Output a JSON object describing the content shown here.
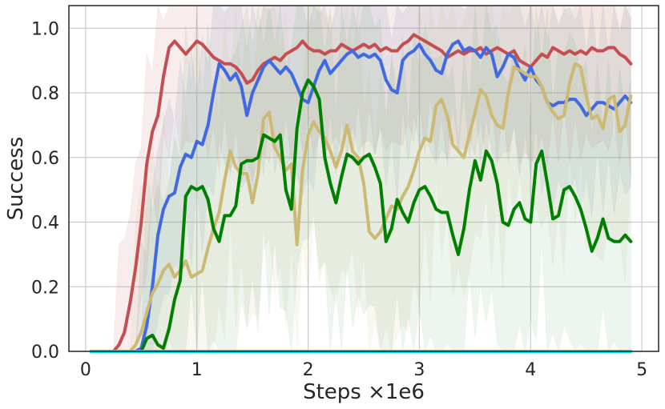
{
  "chart_data": {
    "type": "line",
    "title": "",
    "xlabel": "Steps ×1e6",
    "ylabel": "Success",
    "xlim": [
      -0.15,
      5.15
    ],
    "ylim": [
      0.0,
      1.07
    ],
    "xticks": [
      0,
      1,
      2,
      3,
      4,
      5
    ],
    "xtick_labels": [
      "0",
      "1",
      "2",
      "3",
      "4",
      "5"
    ],
    "yticks": [
      0.0,
      0.2,
      0.4,
      0.6,
      0.8,
      1.0
    ],
    "ytick_labels": [
      "0.0",
      "0.2",
      "0.4",
      "0.6",
      "0.8",
      "1.0"
    ],
    "grid": true,
    "legend": "none",
    "x": [
      0.05,
      0.1,
      0.15,
      0.2,
      0.25,
      0.3,
      0.35,
      0.4,
      0.45,
      0.5,
      0.55,
      0.6,
      0.65,
      0.7,
      0.75,
      0.8,
      0.85,
      0.9,
      0.95,
      1.0,
      1.05,
      1.1,
      1.15,
      1.2,
      1.25,
      1.3,
      1.35,
      1.4,
      1.45,
      1.5,
      1.55,
      1.6,
      1.65,
      1.7,
      1.75,
      1.8,
      1.85,
      1.9,
      1.95,
      2.0,
      2.05,
      2.1,
      2.15,
      2.2,
      2.25,
      2.3,
      2.35,
      2.4,
      2.45,
      2.5,
      2.55,
      2.6,
      2.65,
      2.7,
      2.75,
      2.8,
      2.85,
      2.9,
      2.95,
      3.0,
      3.05,
      3.1,
      3.15,
      3.2,
      3.25,
      3.3,
      3.35,
      3.4,
      3.45,
      3.5,
      3.55,
      3.6,
      3.65,
      3.7,
      3.75,
      3.8,
      3.85,
      3.9,
      3.95,
      4.0,
      4.05,
      4.1,
      4.15,
      4.2,
      4.25,
      4.3,
      4.35,
      4.4,
      4.45,
      4.5,
      4.55,
      4.6,
      4.65,
      4.7,
      4.75,
      4.8,
      4.85,
      4.9
    ],
    "series": [
      {
        "color": "#c44e52",
        "band_color": "#c44e52",
        "values": [
          0.0,
          0.0,
          0.0,
          0.0,
          0.0,
          0.02,
          0.06,
          0.15,
          0.26,
          0.4,
          0.58,
          0.68,
          0.73,
          0.85,
          0.94,
          0.96,
          0.94,
          0.92,
          0.94,
          0.96,
          0.95,
          0.93,
          0.91,
          0.9,
          0.89,
          0.89,
          0.88,
          0.86,
          0.83,
          0.84,
          0.87,
          0.89,
          0.9,
          0.91,
          0.9,
          0.92,
          0.93,
          0.94,
          0.96,
          0.94,
          0.93,
          0.93,
          0.92,
          0.93,
          0.93,
          0.95,
          0.94,
          0.93,
          0.94,
          0.95,
          0.94,
          0.95,
          0.93,
          0.94,
          0.93,
          0.93,
          0.95,
          0.96,
          0.98,
          0.97,
          0.96,
          0.95,
          0.94,
          0.93,
          0.91,
          0.92,
          0.93,
          0.92,
          0.93,
          0.93,
          0.94,
          0.92,
          0.93,
          0.94,
          0.93,
          0.92,
          0.93,
          0.9,
          0.89,
          0.88,
          0.9,
          0.92,
          0.91,
          0.94,
          0.93,
          0.92,
          0.93,
          0.92,
          0.93,
          0.92,
          0.94,
          0.93,
          0.93,
          0.94,
          0.94,
          0.92,
          0.91,
          0.89
        ],
        "band": [
          0.15,
          0.2
        ]
      },
      {
        "color": "#4169e1",
        "band_color": "#4c72b0",
        "values": [
          0.0,
          0.0,
          0.0,
          0.0,
          0.0,
          0.0,
          0.0,
          0.0,
          0.0,
          0.01,
          0.08,
          0.2,
          0.36,
          0.44,
          0.48,
          0.49,
          0.57,
          0.61,
          0.6,
          0.65,
          0.64,
          0.7,
          0.8,
          0.89,
          0.87,
          0.84,
          0.86,
          0.82,
          0.73,
          0.8,
          0.84,
          0.88,
          0.9,
          0.88,
          0.86,
          0.88,
          0.86,
          0.82,
          0.78,
          0.77,
          0.82,
          0.87,
          0.9,
          0.86,
          0.88,
          0.9,
          0.92,
          0.93,
          0.91,
          0.92,
          0.91,
          0.92,
          0.9,
          0.84,
          0.81,
          0.8,
          0.9,
          0.92,
          0.93,
          0.95,
          0.92,
          0.9,
          0.87,
          0.86,
          0.92,
          0.95,
          0.96,
          0.93,
          0.94,
          0.93,
          0.91,
          0.94,
          0.92,
          0.85,
          0.88,
          0.92,
          0.91,
          0.87,
          0.84,
          0.88,
          0.84,
          0.82,
          0.77,
          0.76,
          0.77,
          0.77,
          0.78,
          0.78,
          0.76,
          0.73,
          0.75,
          0.77,
          0.77,
          0.76,
          0.75,
          0.77,
          0.79,
          0.77
        ],
        "band": [
          0.12,
          0.22
        ]
      },
      {
        "color": "#ccb974",
        "band_color": "#ccb974",
        "values": [
          0.0,
          0.0,
          0.0,
          0.0,
          0.0,
          0.0,
          0.0,
          0.0,
          0.02,
          0.06,
          0.12,
          0.18,
          0.21,
          0.25,
          0.27,
          0.23,
          0.25,
          0.28,
          0.23,
          0.24,
          0.25,
          0.32,
          0.38,
          0.43,
          0.53,
          0.62,
          0.57,
          0.55,
          0.55,
          0.46,
          0.55,
          0.72,
          0.74,
          0.63,
          0.6,
          0.56,
          0.58,
          0.33,
          0.56,
          0.67,
          0.71,
          0.68,
          0.66,
          0.62,
          0.57,
          0.62,
          0.7,
          0.62,
          0.6,
          0.52,
          0.37,
          0.35,
          0.37,
          0.41,
          0.45,
          0.44,
          0.48,
          0.51,
          0.56,
          0.62,
          0.66,
          0.65,
          0.76,
          0.78,
          0.73,
          0.64,
          0.62,
          0.6,
          0.67,
          0.74,
          0.81,
          0.79,
          0.73,
          0.7,
          0.69,
          0.8,
          0.88,
          0.87,
          0.86,
          0.85,
          0.85,
          0.82,
          0.77,
          0.74,
          0.72,
          0.73,
          0.83,
          0.89,
          0.88,
          0.79,
          0.72,
          0.73,
          0.69,
          0.78,
          0.79,
          0.68,
          0.7,
          0.79
        ],
        "band": [
          0.2,
          0.3
        ]
      },
      {
        "color": "#008000",
        "band_color": "#55a868",
        "values": [
          0.0,
          0.0,
          0.0,
          0.0,
          0.0,
          0.0,
          0.0,
          0.0,
          0.0,
          0.0,
          0.04,
          0.05,
          0.02,
          0.01,
          0.07,
          0.16,
          0.22,
          0.48,
          0.51,
          0.5,
          0.51,
          0.47,
          0.38,
          0.34,
          0.42,
          0.42,
          0.45,
          0.58,
          0.59,
          0.59,
          0.6,
          0.67,
          0.66,
          0.65,
          0.67,
          0.5,
          0.44,
          0.69,
          0.8,
          0.84,
          0.82,
          0.78,
          0.6,
          0.52,
          0.46,
          0.54,
          0.61,
          0.6,
          0.58,
          0.6,
          0.61,
          0.57,
          0.52,
          0.34,
          0.38,
          0.47,
          0.43,
          0.4,
          0.46,
          0.5,
          0.51,
          0.48,
          0.44,
          0.43,
          0.43,
          0.36,
          0.3,
          0.38,
          0.5,
          0.59,
          0.53,
          0.62,
          0.59,
          0.52,
          0.4,
          0.39,
          0.44,
          0.46,
          0.41,
          0.4,
          0.58,
          0.62,
          0.52,
          0.41,
          0.42,
          0.5,
          0.51,
          0.48,
          0.44,
          0.38,
          0.31,
          0.35,
          0.41,
          0.35,
          0.34,
          0.34,
          0.36,
          0.34
        ],
        "band": [
          0.25,
          0.3
        ]
      },
      {
        "color": "#00e5ee",
        "band_color": "#00e5ee",
        "values": [
          0.0,
          0.0,
          0.0,
          0.0,
          0.0,
          0.0,
          0.0,
          0.0,
          0.0,
          0.0,
          0.0,
          0.0,
          0.0,
          0.0,
          0.0,
          0.0,
          0.0,
          0.0,
          0.0,
          0.0,
          0.0,
          0.0,
          0.0,
          0.0,
          0.0,
          0.0,
          0.0,
          0.0,
          0.0,
          0.0,
          0.0,
          0.0,
          0.0,
          0.0,
          0.0,
          0.0,
          0.0,
          0.0,
          0.0,
          0.0,
          0.0,
          0.0,
          0.0,
          0.0,
          0.0,
          0.0,
          0.0,
          0.0,
          0.0,
          0.0,
          0.0,
          0.0,
          0.0,
          0.0,
          0.0,
          0.0,
          0.0,
          0.0,
          0.0,
          0.0,
          0.0,
          0.0,
          0.0,
          0.0,
          0.0,
          0.0,
          0.0,
          0.0,
          0.0,
          0.0,
          0.0,
          0.0,
          0.0,
          0.0,
          0.0,
          0.0,
          0.0,
          0.0,
          0.0,
          0.0,
          0.0,
          0.0,
          0.0,
          0.0,
          0.0,
          0.0,
          0.0,
          0.0,
          0.0,
          0.0,
          0.0,
          0.0,
          0.0,
          0.0,
          0.0,
          0.0,
          0.0,
          0.0
        ],
        "band": [
          0.0,
          0.0
        ]
      }
    ]
  }
}
